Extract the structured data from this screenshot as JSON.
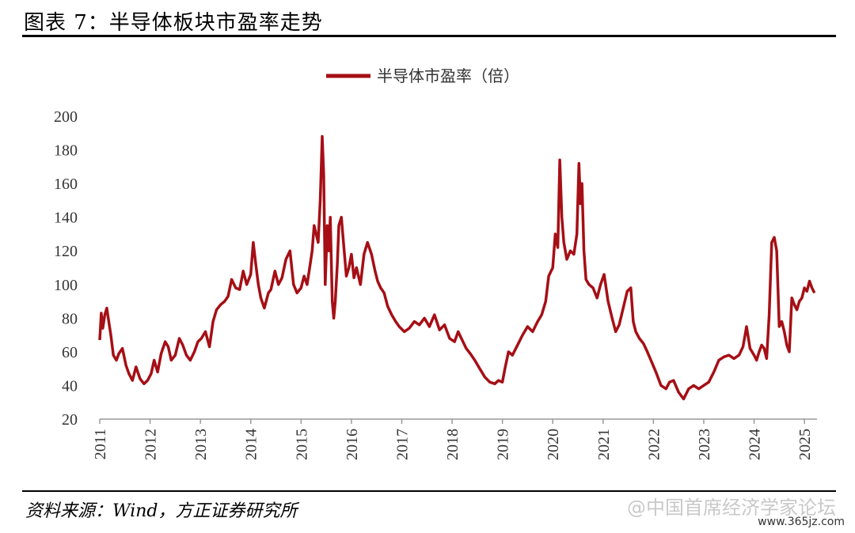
{
  "figure": {
    "title": "图表 7：半导体板块市盈率走势",
    "source": "资料来源：Wind，方正证券研究所",
    "watermark": "@中国首席经济学家论坛",
    "watermark_url": "www.365jz.com"
  },
  "chart_data": {
    "type": "line",
    "title": "",
    "xlabel": "",
    "ylabel": "",
    "ylim": [
      20,
      200
    ],
    "xlim": [
      2011.0,
      2025.25
    ],
    "yticks": [
      20,
      40,
      60,
      80,
      100,
      120,
      140,
      160,
      180,
      200
    ],
    "xticks": [
      "2011",
      "2012",
      "2013",
      "2014",
      "2015",
      "2016",
      "2017",
      "2018",
      "2019",
      "2020",
      "2021",
      "2022",
      "2023",
      "2024",
      "2025"
    ],
    "grid": false,
    "legend_position": "top-center",
    "series_color": "#a50f15",
    "series": [
      {
        "name": "半导体市盈率（倍）",
        "x": [
          2011.0,
          2011.03,
          2011.06,
          2011.1,
          2011.14,
          2011.18,
          2011.22,
          2011.27,
          2011.33,
          2011.38,
          2011.45,
          2011.52,
          2011.58,
          2011.65,
          2011.72,
          2011.8,
          2011.88,
          2011.95,
          2012.02,
          2012.08,
          2012.15,
          2012.22,
          2012.3,
          2012.36,
          2012.42,
          2012.5,
          2012.58,
          2012.65,
          2012.72,
          2012.8,
          2012.88,
          2012.95,
          2013.02,
          2013.1,
          2013.18,
          2013.25,
          2013.32,
          2013.4,
          2013.48,
          2013.55,
          2013.62,
          2013.7,
          2013.78,
          2013.85,
          2013.92,
          2014.0,
          2014.05,
          2014.1,
          2014.15,
          2014.2,
          2014.27,
          2014.35,
          2014.4,
          2014.48,
          2014.55,
          2014.62,
          2014.7,
          2014.78,
          2014.85,
          2014.92,
          2015.0,
          2015.06,
          2015.12,
          2015.18,
          2015.22,
          2015.26,
          2015.3,
          2015.34,
          2015.38,
          2015.42,
          2015.45,
          2015.48,
          2015.52,
          2015.55,
          2015.58,
          2015.62,
          2015.65,
          2015.68,
          2015.72,
          2015.75,
          2015.8,
          2015.85,
          2015.9,
          2015.95,
          2016.0,
          2016.05,
          2016.1,
          2016.18,
          2016.25,
          2016.32,
          2016.4,
          2016.47,
          2016.52,
          2016.58,
          2016.65,
          2016.72,
          2016.8,
          2016.88,
          2016.95,
          2017.05,
          2017.15,
          2017.25,
          2017.35,
          2017.45,
          2017.55,
          2017.65,
          2017.75,
          2017.85,
          2017.95,
          2018.05,
          2018.12,
          2018.2,
          2018.28,
          2018.36,
          2018.45,
          2018.55,
          2018.65,
          2018.75,
          2018.85,
          2018.92,
          2019.0,
          2019.05,
          2019.12,
          2019.2,
          2019.3,
          2019.4,
          2019.5,
          2019.6,
          2019.7,
          2019.78,
          2019.86,
          2019.92,
          2020.0,
          2020.05,
          2020.1,
          2020.14,
          2020.18,
          2020.22,
          2020.28,
          2020.35,
          2020.42,
          2020.48,
          2020.52,
          2020.55,
          2020.58,
          2020.62,
          2020.66,
          2020.72,
          2020.8,
          2020.88,
          2020.95,
          2021.02,
          2021.1,
          2021.18,
          2021.25,
          2021.32,
          2021.4,
          2021.48,
          2021.55,
          2021.6,
          2021.65,
          2021.72,
          2021.8,
          2021.88,
          2021.95,
          2022.05,
          2022.15,
          2022.25,
          2022.32,
          2022.4,
          2022.5,
          2022.6,
          2022.7,
          2022.8,
          2022.9,
          2023.0,
          2023.1,
          2023.2,
          2023.3,
          2023.4,
          2023.5,
          2023.6,
          2023.7,
          2023.78,
          2023.85,
          2023.92,
          2024.0,
          2024.05,
          2024.1,
          2024.15,
          2024.2,
          2024.25,
          2024.3,
          2024.35,
          2024.4,
          2024.45,
          2024.5,
          2024.55,
          2024.6,
          2024.65,
          2024.7,
          2024.75,
          2024.8,
          2024.85,
          2024.9,
          2024.95,
          2025.0,
          2025.05,
          2025.1,
          2025.15,
          2025.2
        ],
        "y": [
          67,
          83,
          74,
          82,
          86,
          78,
          70,
          58,
          55,
          59,
          62,
          52,
          47,
          43,
          51,
          44,
          41,
          43,
          47,
          55,
          48,
          59,
          66,
          63,
          55,
          58,
          68,
          64,
          58,
          55,
          60,
          66,
          68,
          72,
          63,
          78,
          85,
          88,
          90,
          93,
          103,
          98,
          97,
          108,
          100,
          106,
          125,
          112,
          100,
          92,
          86,
          95,
          97,
          108,
          100,
          104,
          115,
          120,
          100,
          95,
          98,
          105,
          100,
          112,
          120,
          135,
          130,
          125,
          150,
          188,
          165,
          100,
          135,
          120,
          140,
          90,
          80,
          90,
          112,
          135,
          140,
          122,
          105,
          110,
          118,
          104,
          110,
          100,
          118,
          125,
          118,
          108,
          102,
          98,
          95,
          87,
          82,
          78,
          75,
          72,
          74,
          78,
          76,
          80,
          75,
          82,
          73,
          76,
          68,
          66,
          72,
          67,
          62,
          59,
          55,
          50,
          45,
          42,
          41,
          43,
          42,
          50,
          60,
          58,
          64,
          70,
          75,
          72,
          78,
          82,
          90,
          105,
          110,
          130,
          122,
          174,
          140,
          125,
          115,
          120,
          118,
          130,
          172,
          148,
          160,
          120,
          103,
          100,
          98,
          92,
          100,
          106,
          90,
          80,
          72,
          76,
          86,
          96,
          98,
          78,
          72,
          68,
          65,
          60,
          55,
          48,
          40,
          38,
          42,
          43,
          36,
          32,
          38,
          40,
          38,
          40,
          42,
          48,
          55,
          57,
          58,
          56,
          58,
          63,
          75,
          62,
          58,
          55,
          60,
          64,
          62,
          56,
          82,
          125,
          128,
          120,
          75,
          78,
          72,
          64,
          60,
          92,
          88,
          85,
          90,
          92,
          98,
          96,
          102,
          98,
          95
        ]
      }
    ]
  }
}
